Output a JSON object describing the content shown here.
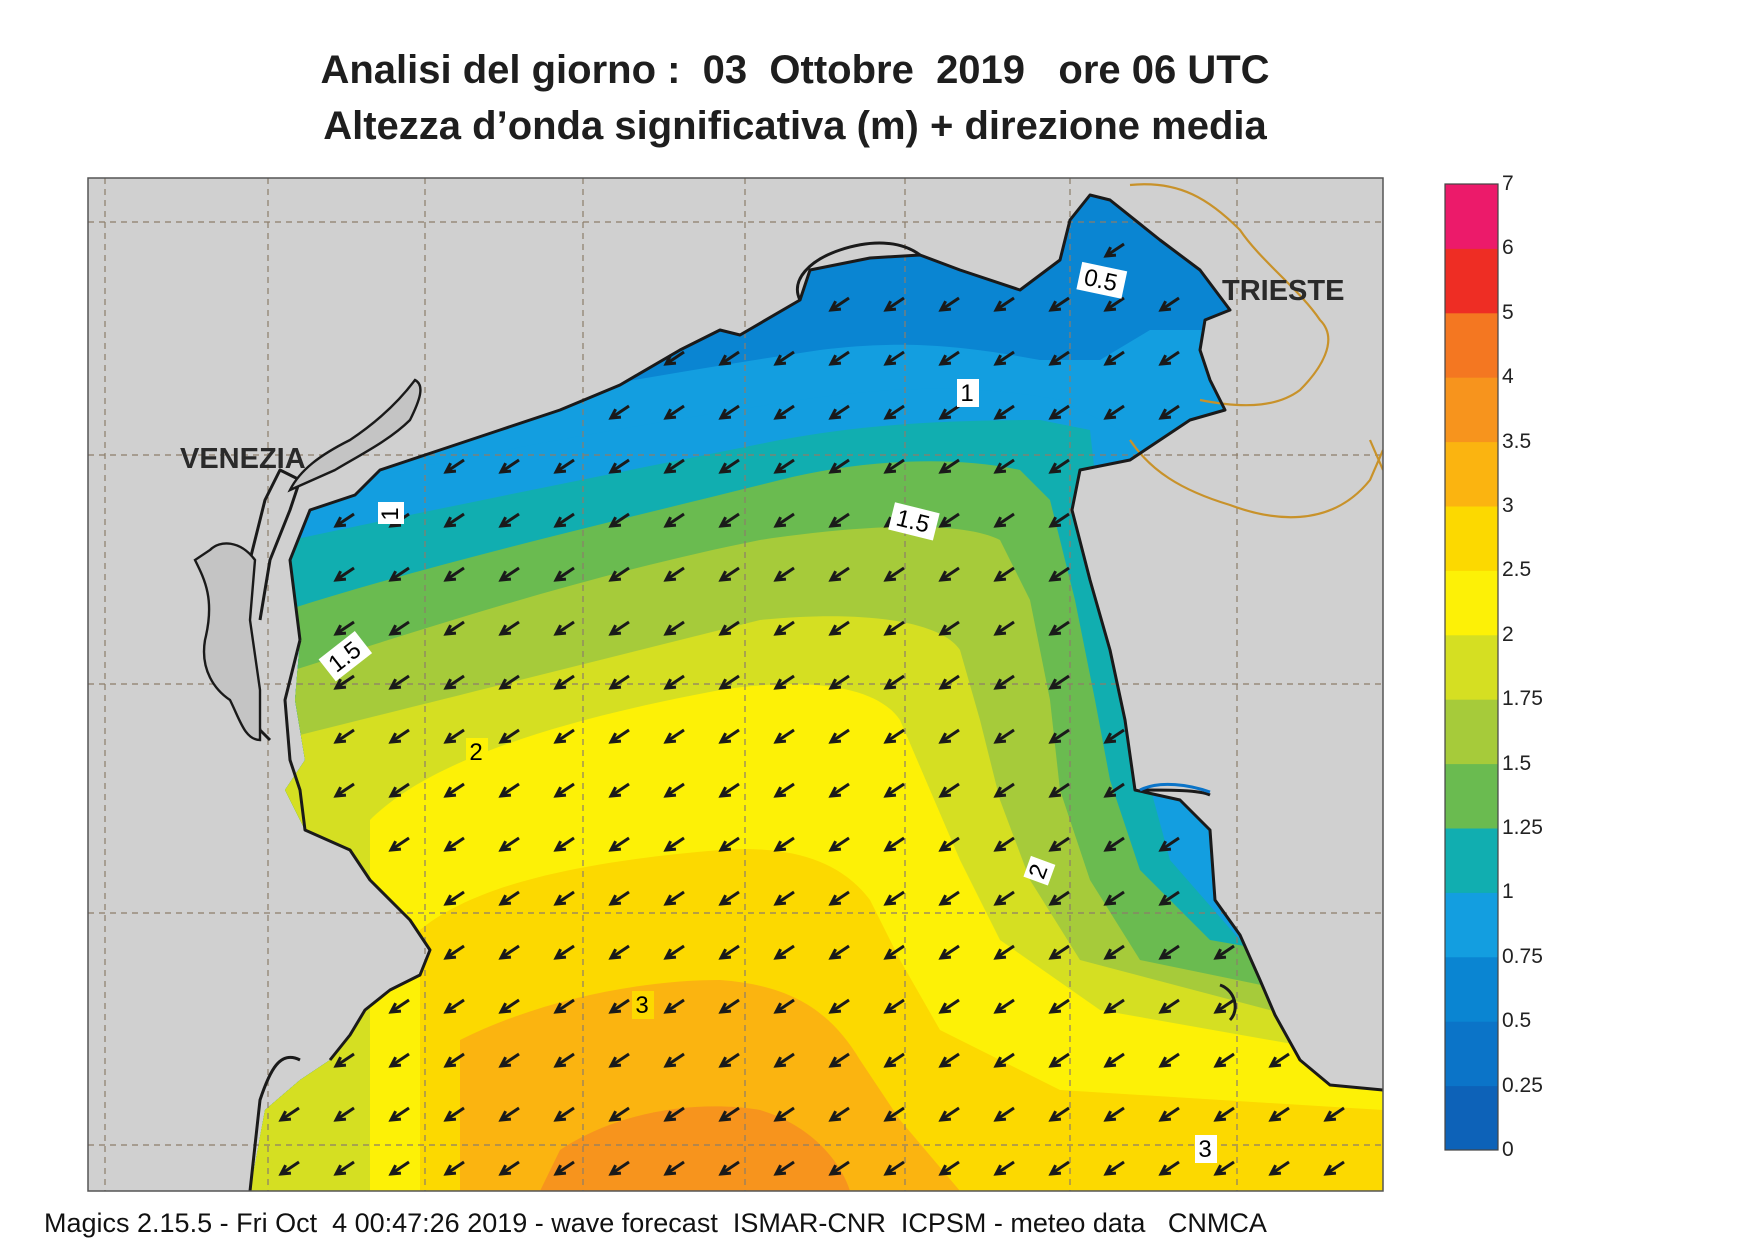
{
  "header": {
    "title_line1": "Analisi del giorno :  03  Ottobre  2019   ore 06 UTC",
    "title_line2": "Altezza d’onda significativa (m) + direzione media"
  },
  "places": {
    "venezia": "VENEZIA",
    "trieste": "TRIESTE"
  },
  "contour_labels": [
    {
      "text": "0.5"
    },
    {
      "text": "1"
    },
    {
      "text": "1"
    },
    {
      "text": "1.5"
    },
    {
      "text": "1.5"
    },
    {
      "text": "2"
    },
    {
      "text": "2"
    },
    {
      "text": "3"
    },
    {
      "text": "3"
    }
  ],
  "colorbar": {
    "levels": [
      "0",
      "0.25",
      "0.5",
      "0.75",
      "1",
      "1.25",
      "1.5",
      "1.75",
      "2",
      "2.5",
      "3",
      "3.5",
      "4",
      "5",
      "6",
      "7"
    ],
    "colors": [
      "#0d62b8",
      "#0b74c8",
      "#0a85d2",
      "#139ee0",
      "#11aeb0",
      "#6abb50",
      "#a6cb3a",
      "#d5df22",
      "#fdf106",
      "#fcd900",
      "#fbb410",
      "#f7941d",
      "#f47721",
      "#ee2d24",
      "#ec1a6a"
    ]
  },
  "footer": "Magics 2.15.5 - Fri Oct  4 00:47:26 2019 - wave forecast  ISMAR-CNR  ICPSM - meteo data   CNMCA",
  "colors": {
    "land": "#d0d0d0",
    "coastline": "#1a1a1a",
    "border": "#c8922a",
    "arrow": "#1a1a1a"
  }
}
